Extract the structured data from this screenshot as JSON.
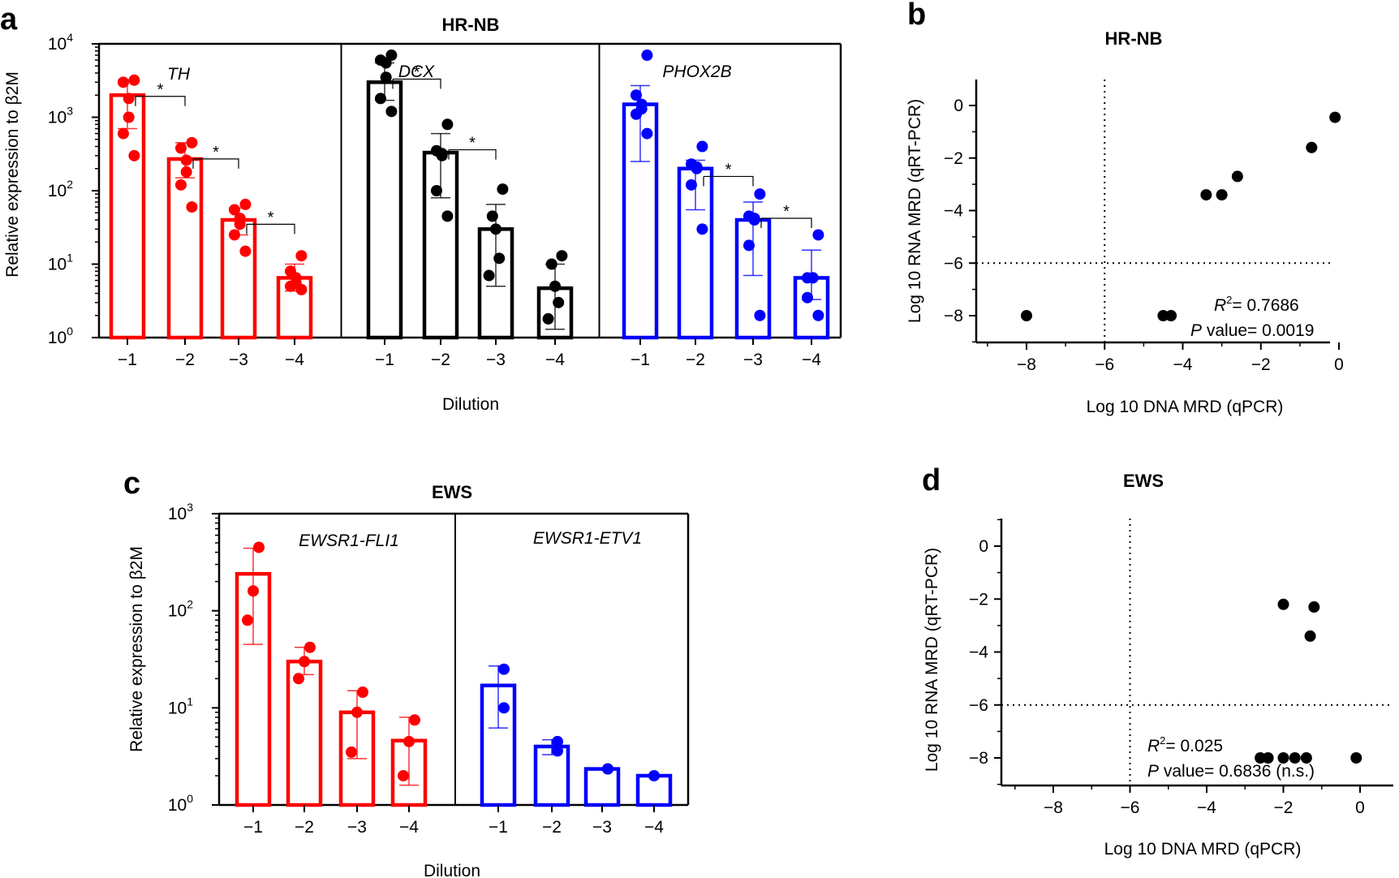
{
  "panels": {
    "a": {
      "letter": "a",
      "title": "HR-NB",
      "ylabel": "Relative expression to β2M",
      "xlabel": "Dilution"
    },
    "b": {
      "letter": "b",
      "title": "HR-NB",
      "ylabel": "Log 10 RNA MRD (qRT-PCR)",
      "xlabel": "Log 10 DNA MRD (qPCR)",
      "r2_label": "R",
      "r2_value": "= 0.7686",
      "p_label": "P",
      "p_value": " value= 0.0019"
    },
    "c": {
      "letter": "c",
      "title": "EWS",
      "ylabel": "Relative expression to β2M",
      "xlabel": "Dilution"
    },
    "d": {
      "letter": "d",
      "title": "EWS",
      "ylabel": "Log 10 RNA MRD (qRT-PCR)",
      "xlabel": "Log 10 DNA MRD (qPCR)",
      "r2_label": "R",
      "r2_value": "= 0.025",
      "p_label": "P",
      "p_value": " value= 0.6836 (n.s.)"
    }
  },
  "chart_data": [
    {
      "panel": "a",
      "type": "bar",
      "yscale": "log",
      "ylim": [
        1,
        10000
      ],
      "yticks": [
        {
          "value": 1,
          "base": "10",
          "exp": "0"
        },
        {
          "value": 10,
          "base": "10",
          "exp": "1"
        },
        {
          "value": 100,
          "base": "10",
          "exp": "2"
        },
        {
          "value": 1000,
          "base": "10",
          "exp": "3"
        },
        {
          "value": 10000,
          "base": "10",
          "exp": "4"
        }
      ],
      "categories": [
        "−1",
        "−2",
        "−3",
        "−4"
      ],
      "groups": [
        {
          "name": "TH",
          "color": "#ff0000",
          "bars": [
            {
              "mean": 2000,
              "lo": 700,
              "hi": 3200,
              "points": [
                3200,
                3000,
                1800,
                1000,
                600,
                300
              ]
            },
            {
              "mean": 270,
              "lo": 150,
              "hi": 450,
              "points": [
                450,
                380,
                260,
                180,
                120,
                60
              ]
            },
            {
              "mean": 40,
              "lo": 25,
              "hi": 58,
              "points": [
                65,
                55,
                42,
                35,
                25,
                15
              ]
            },
            {
              "mean": 6.5,
              "lo": 4.3,
              "hi": 10,
              "points": [
                13,
                8,
                6.5,
                5.5,
                5,
                4.5
              ]
            }
          ],
          "sig": [
            0,
            1,
            2
          ]
        },
        {
          "name": "DCX",
          "color": "#000000",
          "bars": [
            {
              "mean": 3000,
              "lo": 1700,
              "hi": 5500,
              "points": [
                7000,
                6000,
                5500,
                3500,
                1800,
                1200
              ]
            },
            {
              "mean": 330,
              "lo": 80,
              "hi": 600,
              "points": [
                800,
                350,
                320,
                300,
                100,
                45
              ]
            },
            {
              "mean": 30,
              "lo": 5,
              "hi": 65,
              "points": [
                105,
                45,
                30,
                12,
                7
              ]
            },
            {
              "mean": 4.7,
              "lo": 1.3,
              "hi": 10,
              "points": [
                13,
                10,
                5,
                3,
                1.8
              ]
            }
          ],
          "sig": [
            0,
            1
          ]
        },
        {
          "name": "PHOX2B",
          "color": "#0000ff",
          "bars": [
            {
              "mean": 1500,
              "lo": 250,
              "hi": 2700,
              "points": [
                7000,
                2000,
                1500,
                1300,
                1100,
                600
              ]
            },
            {
              "mean": 200,
              "lo": 55,
              "hi": 260,
              "points": [
                400,
                230,
                210,
                200,
                120,
                30
              ]
            },
            {
              "mean": 40,
              "lo": 7,
              "hi": 70,
              "points": [
                90,
                45,
                42,
                40,
                18,
                2
              ]
            },
            {
              "mean": 6.5,
              "lo": 3.3,
              "hi": 15.5,
              "points": [
                25,
                6.5,
                6.5,
                6.5,
                3.5,
                2
              ]
            }
          ],
          "sig": [
            1,
            2
          ]
        }
      ]
    },
    {
      "panel": "b",
      "type": "scatter",
      "xlim": [
        -9,
        1
      ],
      "ylim": [
        -9,
        1
      ],
      "xticks": [
        -8,
        -6,
        -4,
        -2,
        0
      ],
      "yticks": [
        0,
        -2,
        -4,
        -6,
        -8
      ],
      "threshold": {
        "x": -6,
        "y": -6
      },
      "points": [
        [
          -8,
          -8
        ],
        [
          -4.5,
          -8
        ],
        [
          -4.3,
          -8
        ],
        [
          -3.4,
          -3.4
        ],
        [
          -3.0,
          -3.4
        ],
        [
          -2.6,
          -2.7
        ],
        [
          -0.7,
          -1.6
        ],
        [
          -0.1,
          -0.45
        ]
      ]
    },
    {
      "panel": "c",
      "type": "bar",
      "yscale": "log",
      "ylim": [
        1,
        1000
      ],
      "yticks": [
        {
          "value": 1,
          "base": "10",
          "exp": "0"
        },
        {
          "value": 10,
          "base": "10",
          "exp": "1"
        },
        {
          "value": 100,
          "base": "10",
          "exp": "2"
        },
        {
          "value": 1000,
          "base": "10",
          "exp": "3"
        }
      ],
      "categories": [
        "−1",
        "−2",
        "−3",
        "−4"
      ],
      "groups": [
        {
          "name": "EWSR1-FLI1",
          "color": "#ff0000",
          "bars": [
            {
              "mean": 240,
              "lo": 45,
              "hi": 440,
              "points": [
                450,
                160,
                80
              ]
            },
            {
              "mean": 30,
              "lo": 22,
              "hi": 42,
              "points": [
                42,
                30,
                20
              ]
            },
            {
              "mean": 9,
              "lo": 3,
              "hi": 15,
              "points": [
                14.5,
                9,
                3.5
              ]
            },
            {
              "mean": 4.6,
              "lo": 1.6,
              "hi": 8,
              "points": [
                7.5,
                4.5,
                2
              ]
            }
          ],
          "sig": []
        },
        {
          "name": "EWSR1-ETV1",
          "color": "#0000ff",
          "bars": [
            {
              "mean": 17,
              "lo": 6.2,
              "hi": 27,
              "points": [
                25,
                10
              ]
            },
            {
              "mean": 4,
              "lo": 3.3,
              "hi": 4.7,
              "points": [
                4.5,
                3.6
              ]
            },
            {
              "mean": 2.35,
              "lo": 2.3,
              "hi": 2.4,
              "points": [
                2.35,
                2.35
              ]
            },
            {
              "mean": 2.0,
              "lo": 2.0,
              "hi": 2.0,
              "points": [
                2.0
              ]
            }
          ],
          "sig": []
        }
      ]
    },
    {
      "panel": "d",
      "type": "scatter",
      "xlim": [
        -9,
        1
      ],
      "ylim": [
        -9,
        1
      ],
      "xticks": [
        -8,
        -6,
        -4,
        -2,
        0
      ],
      "yticks": [
        0,
        -2,
        -4,
        -6,
        -8
      ],
      "threshold": {
        "x": -6,
        "y": -6
      },
      "points": [
        [
          -2.6,
          -8
        ],
        [
          -2.4,
          -8
        ],
        [
          -2.0,
          -8
        ],
        [
          -1.7,
          -8
        ],
        [
          -1.4,
          -8
        ],
        [
          -0.1,
          -8
        ],
        [
          -2.0,
          -2.2
        ],
        [
          -1.3,
          -3.4
        ],
        [
          -1.2,
          -2.3
        ]
      ]
    }
  ]
}
